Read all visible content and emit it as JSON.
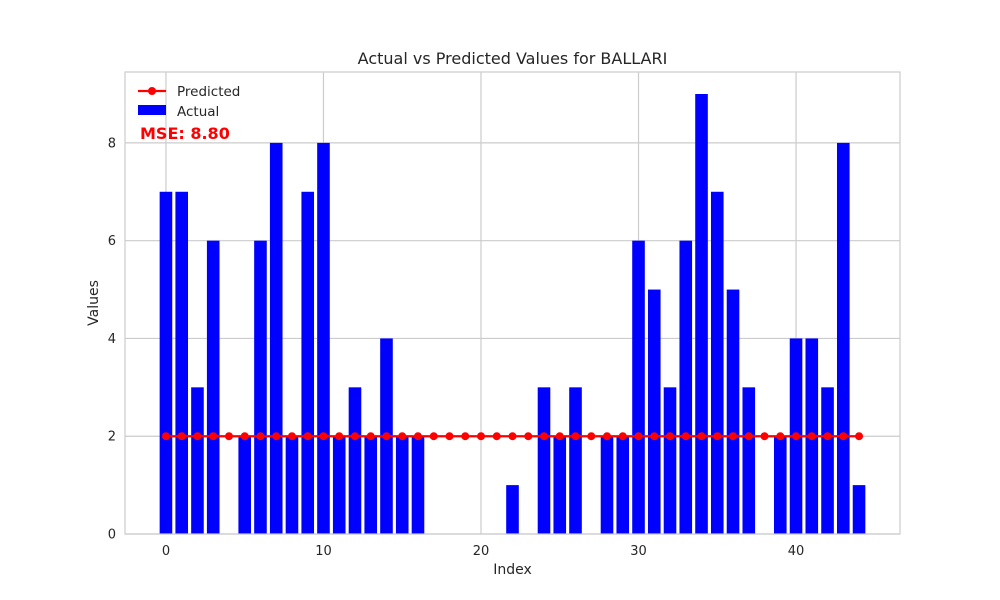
{
  "chart_data": {
    "type": "bar",
    "title": "Actual vs Predicted Values for BALLARI",
    "xlabel": "Index",
    "ylabel": "Values",
    "xlim": [
      -2.6,
      46.6
    ],
    "ylim": [
      0,
      9.45
    ],
    "xticks": [
      0,
      10,
      20,
      30,
      40
    ],
    "yticks": [
      0,
      2,
      4,
      6,
      8
    ],
    "grid": true,
    "legend_position": "top-left",
    "annotation": "MSE: 8.80",
    "annotation_color": "#ff0000",
    "x": [
      0,
      1,
      2,
      3,
      4,
      5,
      6,
      7,
      8,
      9,
      10,
      11,
      12,
      13,
      14,
      15,
      16,
      17,
      18,
      19,
      20,
      21,
      22,
      23,
      24,
      25,
      26,
      27,
      28,
      29,
      30,
      31,
      32,
      33,
      34,
      35,
      36,
      37,
      38,
      39,
      40,
      41,
      42,
      43,
      44
    ],
    "series": [
      {
        "name": "Actual",
        "kind": "bar",
        "color": "#0000ff",
        "values": [
          7,
          7,
          3,
          6,
          0,
          2,
          6,
          8,
          2,
          7,
          8,
          2,
          3,
          2,
          4,
          2,
          2,
          0,
          0,
          0,
          0,
          0,
          1,
          0,
          3,
          2,
          3,
          0,
          2,
          2,
          6,
          5,
          3,
          6,
          9,
          7,
          5,
          3,
          0,
          2,
          4,
          4,
          3,
          8,
          1
        ]
      },
      {
        "name": "Predicted",
        "kind": "line",
        "color": "#ff0000",
        "marker": "circle",
        "values": [
          2,
          2,
          2,
          2,
          2,
          2,
          2,
          2,
          2,
          2,
          2,
          2,
          2,
          2,
          2,
          2,
          2,
          2,
          2,
          2,
          2,
          2,
          2,
          2,
          2,
          2,
          2,
          2,
          2,
          2,
          2,
          2,
          2,
          2,
          2,
          2,
          2,
          2,
          2,
          2,
          2,
          2,
          2,
          2,
          2
        ]
      }
    ]
  }
}
